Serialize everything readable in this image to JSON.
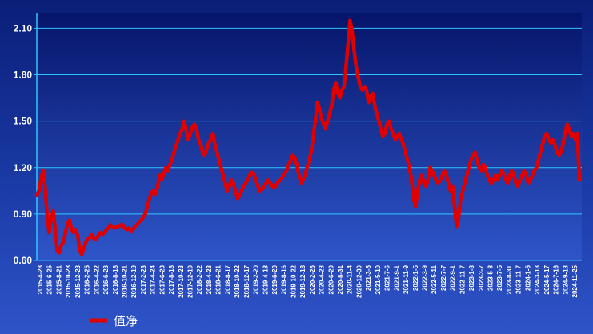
{
  "chart_data": {
    "type": "line",
    "title": "",
    "xlabel": "",
    "ylabel": "",
    "ylim": [
      0.6,
      2.2
    ],
    "yticks": [
      "0.60",
      "0.90",
      "1.20",
      "1.50",
      "1.80",
      "2.10"
    ],
    "ytick_values": [
      0.6,
      0.9,
      1.2,
      1.5,
      1.8,
      2.1
    ],
    "xtick_labels": [
      "2015-4-28",
      "2015-6-25",
      "2015-8-21",
      "2015-10-28",
      "2015-12-23",
      "2016-2-25",
      "2016-4-22",
      "2016-6-23",
      "2016-8-18",
      "2016-10-21",
      "2016-12-19",
      "2017-2-23",
      "2017-4-24",
      "2017-6-23",
      "2017-8-18",
      "2017-10-23",
      "2017-12-19",
      "2018-2-22",
      "2018-4-23",
      "2018-6-21",
      "2018-8-17",
      "2018-10-22",
      "2018-12-17",
      "2019-2-20",
      "2019-4-18",
      "2019-6-20",
      "2019-8-16",
      "2019-10-22",
      "2019-12-18",
      "2020-2-26",
      "2020-4-23",
      "2020-6-29",
      "2020-8-31",
      "2020-11-4",
      "2020-12-30",
      "2021-3-5",
      "2021-5-10",
      "2021-7-6",
      "2021-9-1",
      "2021-11-9",
      "2022-1-5",
      "2022-3-9",
      "2022-5-11",
      "2022-7-7",
      "2022-9-1",
      "2022-11-7",
      "2023-1-3",
      "2023-3-7",
      "2023-5-8",
      "2023-7-5",
      "2023-8-31",
      "2023-11-7",
      "2024-1-5",
      "2024-3-13",
      "2024-5-17",
      "2024-7-16",
      "2024-9-13",
      "2024-11-25"
    ],
    "grid": true,
    "legend_position": "bottom-left",
    "series": [
      {
        "name": "值净",
        "color": "#e00000",
        "x_start": "2015-04-28",
        "x_end": "2024-12-31",
        "values": [
          1.02,
          1.05,
          1.12,
          1.18,
          1.08,
          0.9,
          0.78,
          0.88,
          0.92,
          0.8,
          0.66,
          0.65,
          0.7,
          0.72,
          0.78,
          0.84,
          0.86,
          0.8,
          0.78,
          0.8,
          0.76,
          0.66,
          0.64,
          0.68,
          0.72,
          0.74,
          0.75,
          0.77,
          0.74,
          0.74,
          0.76,
          0.78,
          0.77,
          0.78,
          0.8,
          0.81,
          0.83,
          0.82,
          0.81,
          0.82,
          0.82,
          0.83,
          0.83,
          0.81,
          0.8,
          0.81,
          0.79,
          0.8,
          0.82,
          0.83,
          0.85,
          0.86,
          0.88,
          0.9,
          0.95,
          1.0,
          1.04,
          1.05,
          1.03,
          1.08,
          1.15,
          1.12,
          1.16,
          1.2,
          1.18,
          1.22,
          1.25,
          1.3,
          1.34,
          1.38,
          1.42,
          1.45,
          1.5,
          1.44,
          1.38,
          1.42,
          1.46,
          1.48,
          1.45,
          1.38,
          1.35,
          1.3,
          1.28,
          1.32,
          1.36,
          1.38,
          1.42,
          1.35,
          1.3,
          1.25,
          1.2,
          1.15,
          1.1,
          1.05,
          1.08,
          1.12,
          1.1,
          1.05,
          1.0,
          1.02,
          1.05,
          1.08,
          1.1,
          1.12,
          1.15,
          1.17,
          1.16,
          1.12,
          1.08,
          1.05,
          1.06,
          1.08,
          1.1,
          1.12,
          1.1,
          1.08,
          1.07,
          1.09,
          1.11,
          1.12,
          1.14,
          1.16,
          1.18,
          1.22,
          1.25,
          1.28,
          1.26,
          1.22,
          1.15,
          1.1,
          1.12,
          1.15,
          1.2,
          1.25,
          1.3,
          1.4,
          1.5,
          1.62,
          1.58,
          1.52,
          1.48,
          1.45,
          1.5,
          1.55,
          1.6,
          1.7,
          1.75,
          1.68,
          1.65,
          1.7,
          1.72,
          1.85,
          2.0,
          2.15,
          2.08,
          1.95,
          1.85,
          1.78,
          1.72,
          1.7,
          1.72,
          1.7,
          1.62,
          1.65,
          1.68,
          1.6,
          1.55,
          1.5,
          1.45,
          1.4,
          1.42,
          1.48,
          1.5,
          1.45,
          1.42,
          1.38,
          1.4,
          1.42,
          1.38,
          1.35,
          1.3,
          1.25,
          1.2,
          1.12,
          1.0,
          0.95,
          1.05,
          1.12,
          1.15,
          1.1,
          1.08,
          1.12,
          1.2,
          1.18,
          1.15,
          1.12,
          1.1,
          1.12,
          1.15,
          1.18,
          1.15,
          1.1,
          1.05,
          1.08,
          0.95,
          0.82,
          0.88,
          1.0,
          1.05,
          1.1,
          1.15,
          1.2,
          1.25,
          1.28,
          1.3,
          1.25,
          1.2,
          1.18,
          1.22,
          1.2,
          1.15,
          1.12,
          1.1,
          1.12,
          1.15,
          1.12,
          1.15,
          1.18,
          1.16,
          1.12,
          1.1,
          1.15,
          1.18,
          1.15,
          1.1,
          1.08,
          1.12,
          1.15,
          1.18,
          1.15,
          1.1,
          1.12,
          1.15,
          1.18,
          1.2,
          1.25,
          1.3,
          1.35,
          1.4,
          1.42,
          1.38,
          1.36,
          1.38,
          1.35,
          1.3,
          1.28,
          1.3,
          1.35,
          1.42,
          1.48,
          1.45,
          1.4,
          1.42,
          1.38,
          1.42,
          1.12
        ]
      }
    ]
  }
}
